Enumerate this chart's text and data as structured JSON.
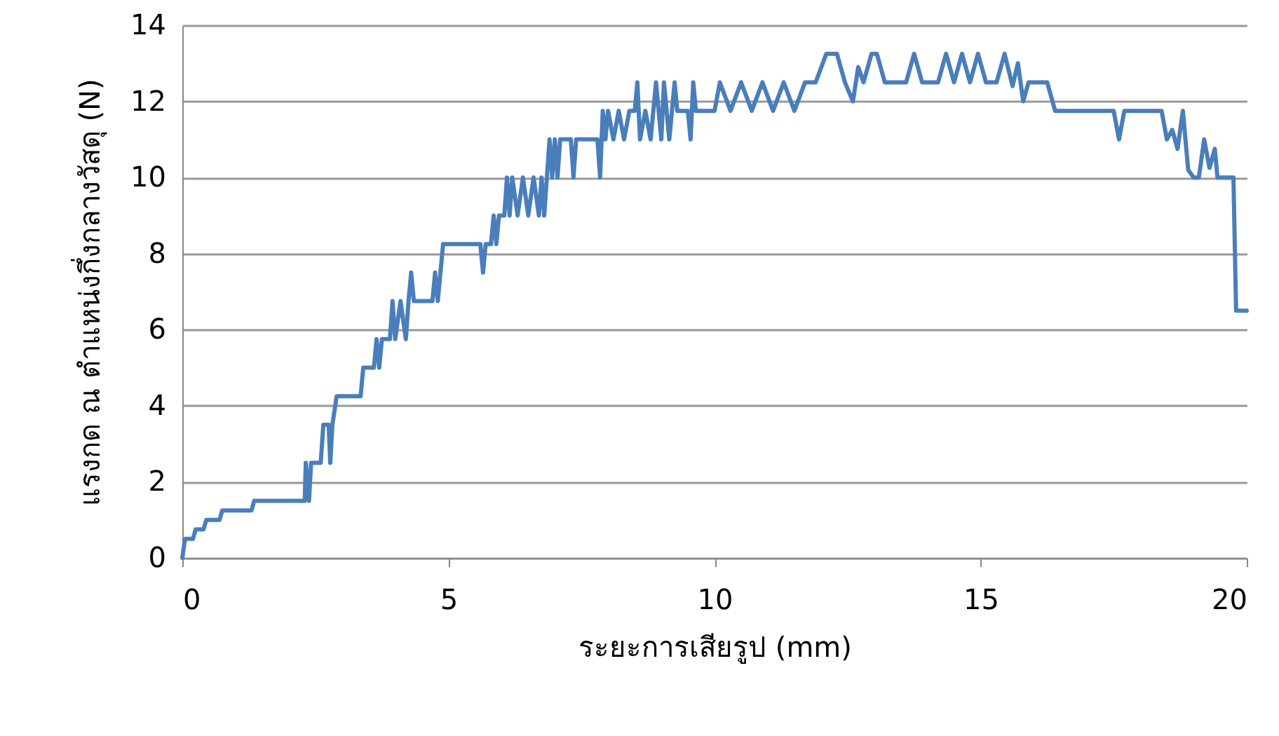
{
  "chart_data": {
    "type": "line",
    "xlabel": "ระยะการเสียรูป (mm)",
    "ylabel": "แรงกด ณ ตำแหน่งกึ่งกลางวัสดุ (N)",
    "xlim": [
      0,
      20
    ],
    "xticks": [
      0,
      5,
      10,
      15,
      20
    ],
    "ylim": [
      0,
      14
    ],
    "yticks": [
      0,
      2,
      4,
      6,
      8,
      10,
      12,
      14
    ],
    "grid": "y",
    "marker": "none",
    "line_style": "solid",
    "series": [
      {
        "color": "#4a7ebb",
        "x": [
          0,
          0.05,
          0.2,
          0.25,
          0.4,
          0.45,
          0.7,
          0.75,
          1.3,
          1.35,
          2.3,
          2.32,
          2.38,
          2.42,
          2.6,
          2.65,
          2.75,
          2.78,
          2.82,
          2.9,
          3.35,
          3.4,
          3.6,
          3.65,
          3.7,
          3.75,
          3.9,
          3.95,
          4.0,
          4.1,
          4.2,
          4.25,
          4.3,
          4.35,
          4.7,
          4.75,
          4.8,
          4.85,
          4.9,
          5.6,
          5.65,
          5.7,
          5.8,
          5.85,
          5.9,
          5.95,
          6.05,
          6.1,
          6.15,
          6.2,
          6.3,
          6.4,
          6.5,
          6.6,
          6.7,
          6.75,
          6.8,
          6.85,
          6.9,
          6.95,
          7.0,
          7.05,
          7.1,
          7.3,
          7.35,
          7.4,
          7.8,
          7.85,
          7.9,
          7.95,
          8.0,
          8.1,
          8.2,
          8.3,
          8.4,
          8.5,
          8.55,
          8.6,
          8.7,
          8.8,
          8.9,
          9.0,
          9.05,
          9.15,
          9.25,
          9.3,
          9.5,
          9.55,
          9.6,
          9.65,
          10.0,
          10.1,
          10.3,
          10.5,
          10.7,
          10.9,
          11.1,
          11.3,
          11.5,
          11.7,
          11.9,
          12.1,
          12.3,
          12.45,
          12.6,
          12.7,
          12.8,
          12.95,
          13.05,
          13.2,
          13.6,
          13.75,
          13.9,
          14.2,
          14.35,
          14.5,
          14.65,
          14.8,
          14.95,
          15.1,
          15.3,
          15.45,
          15.6,
          15.7,
          15.8,
          15.9,
          16.25,
          16.4,
          17.5,
          17.6,
          17.7,
          18.4,
          18.5,
          18.6,
          18.7,
          18.8,
          18.9,
          19.0,
          19.1,
          19.2,
          19.3,
          19.4,
          19.45,
          19.75,
          19.8,
          20
        ],
        "values": [
          0,
          0.5,
          0.5,
          0.75,
          0.75,
          1,
          1,
          1.25,
          1.25,
          1.5,
          1.5,
          2.5,
          1.5,
          2.5,
          2.5,
          3.5,
          3.5,
          2.5,
          3.5,
          4.25,
          4.25,
          5,
          5,
          5.75,
          5,
          5.75,
          5.75,
          6.75,
          5.75,
          6.75,
          5.75,
          6.75,
          7.5,
          6.75,
          6.75,
          7.5,
          6.75,
          7.5,
          8.25,
          8.25,
          7.5,
          8.25,
          8.25,
          9,
          8.25,
          9,
          9,
          10,
          9,
          10,
          9,
          10,
          9,
          10,
          9,
          10,
          9,
          10,
          11,
          10,
          11,
          10,
          11,
          11,
          10,
          11,
          11,
          10,
          11.75,
          11,
          11.75,
          11,
          11.75,
          11,
          11.75,
          11.75,
          12.5,
          11,
          11.75,
          11,
          12.5,
          11,
          12.5,
          11,
          12.5,
          11.75,
          11.75,
          11,
          12.5,
          11.75,
          11.75,
          12.5,
          11.75,
          12.5,
          11.75,
          12.5,
          11.75,
          12.5,
          11.75,
          12.5,
          12.5,
          13.25,
          13.25,
          12.5,
          12,
          12.9,
          12.5,
          13.25,
          13.25,
          12.5,
          12.5,
          13.25,
          12.5,
          12.5,
          13.25,
          12.5,
          13.25,
          12.5,
          13.25,
          12.5,
          12.5,
          13.25,
          12.4,
          13,
          12,
          12.5,
          12.5,
          11.75,
          11.75,
          11,
          11.75,
          11.75,
          11,
          11.25,
          10.75,
          11.75,
          10.2,
          10,
          10,
          11,
          10.25,
          10.75,
          10,
          10,
          6.5,
          6.5
        ]
      }
    ]
  }
}
